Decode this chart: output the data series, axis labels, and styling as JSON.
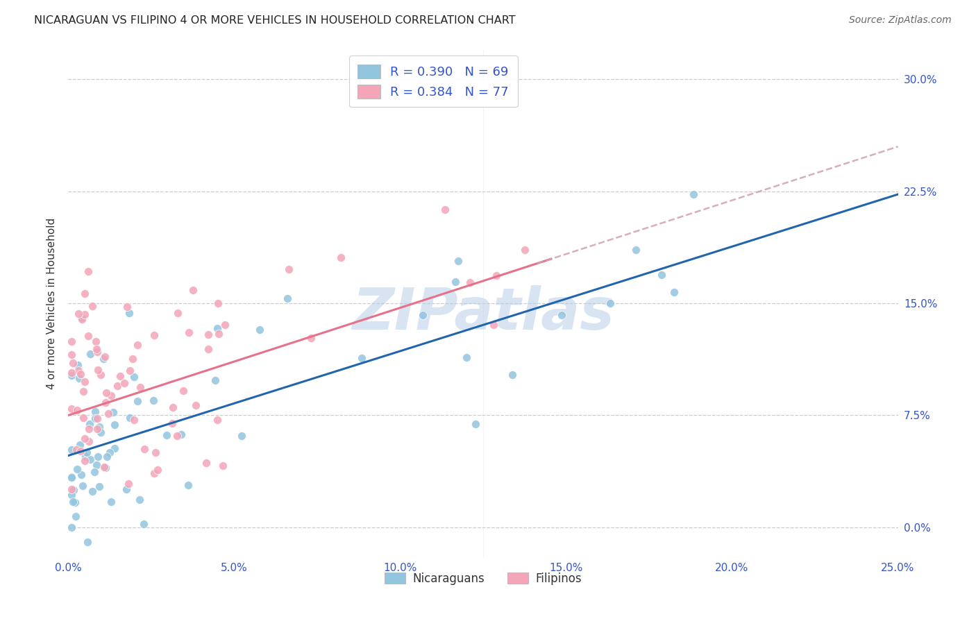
{
  "title": "NICARAGUAN VS FILIPINO 4 OR MORE VEHICLES IN HOUSEHOLD CORRELATION CHART",
  "source": "Source: ZipAtlas.com",
  "ylabel": "4 or more Vehicles in Household",
  "xlim": [
    0.0,
    0.25
  ],
  "ylim": [
    -0.02,
    0.32
  ],
  "xticks": [
    0.0,
    0.05,
    0.1,
    0.15,
    0.2,
    0.25
  ],
  "xticklabels": [
    "0.0%",
    "5.0%",
    "10.0%",
    "15.0%",
    "20.0%",
    "25.0%"
  ],
  "yticks": [
    0.0,
    0.075,
    0.15,
    0.225,
    0.3
  ],
  "yticklabels": [
    "0.0%",
    "7.5%",
    "15.0%",
    "22.5%",
    "30.0%"
  ],
  "blue_color": "#92c5de",
  "pink_color": "#f4a5b8",
  "blue_line_color": "#2166ac",
  "pink_line_color": "#e8718a",
  "pink_dash_color": "#d0a0b0",
  "watermark": "ZIPatlas",
  "watermark_color": "#b8cfe8",
  "background_color": "#ffffff",
  "grid_color": "#cccccc",
  "axis_label_color": "#3355cc",
  "N_nic": 69,
  "N_fil": 77,
  "blue_intercept": 0.048,
  "blue_slope": 0.7,
  "pink_intercept": 0.075,
  "pink_slope": 0.72
}
